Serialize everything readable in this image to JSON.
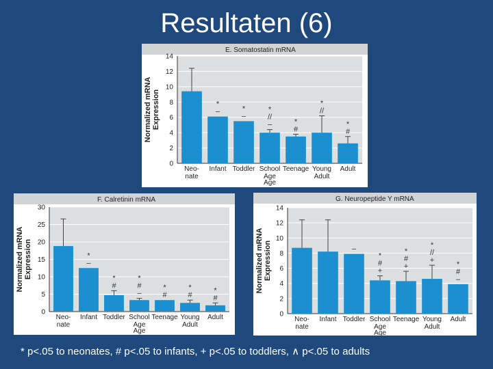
{
  "slide": {
    "title": "Resultaten (6)",
    "footnote": "* p<.05 to neonates, # p<.05 to infants, + p<.05 to toddlers, ∧ p<.05 to adults"
  },
  "colors": {
    "background": "#1f497d",
    "plot_bg": "#dcdee0",
    "bar": "#1b8fd0",
    "header_bg": "#d2d3d5",
    "text": "#222222"
  },
  "chart_data": [
    {
      "id": "e",
      "type": "bar",
      "title": "E. Somatostatin mRNA",
      "ylabel": "Normalized mRNA Expression",
      "xlabel": "Age",
      "ylim": [
        0,
        14
      ],
      "yticks": [
        0,
        2,
        4,
        6,
        8,
        10,
        12,
        14
      ],
      "categories": [
        "Neo-nate",
        "Infant",
        "Toddler",
        "School Age",
        "Teenage",
        "Young Adult",
        "Adult"
      ],
      "values": [
        9.4,
        6.1,
        5.5,
        4.0,
        3.5,
        4.0,
        2.6
      ],
      "errors": [
        3.0,
        0,
        0,
        0.4,
        0.3,
        2.2,
        0.9
      ],
      "annotations": [
        [],
        [
          "*",
          "–"
        ],
        [
          "*",
          "–"
        ],
        [
          "*",
          "//",
          "–"
        ],
        [
          "*",
          "#"
        ],
        [
          "*",
          "//"
        ],
        [
          "*",
          "#"
        ]
      ]
    },
    {
      "id": "f",
      "type": "bar",
      "title": "F. Calretinin mRNA",
      "ylabel": "Normalized mRNA Expression",
      "xlabel": "Age",
      "ylim": [
        0,
        30
      ],
      "yticks": [
        0,
        5,
        10,
        15,
        20,
        25,
        30
      ],
      "categories": [
        "Neo-nate",
        "Infant",
        "Toddler",
        "School Age",
        "Teenage",
        "Young Adult",
        "Adult"
      ],
      "values": [
        18.8,
        12.5,
        4.7,
        3.3,
        3.3,
        2.5,
        1.8
      ],
      "errors": [
        7.8,
        0,
        1.3,
        0.5,
        0,
        0.8,
        0.7
      ],
      "annotations": [
        [],
        [
          "*",
          "–"
        ],
        [
          "*",
          "#"
        ],
        [
          "*",
          "#",
          "–"
        ],
        [
          "*",
          "#"
        ],
        [
          "*",
          "#"
        ],
        [
          "*",
          "#"
        ]
      ]
    },
    {
      "id": "g",
      "type": "bar",
      "title": "G. Neuropeptide Y mRNA",
      "ylabel": "Normalized mRNA Expression",
      "xlabel": "Age",
      "ylim": [
        0,
        14
      ],
      "yticks": [
        0,
        2,
        4,
        6,
        8,
        10,
        12,
        14
      ],
      "categories": [
        "Neo-nate",
        "Infant",
        "Toddler",
        "School Age",
        "Teenage",
        "Young Adult",
        "Adult"
      ],
      "values": [
        8.7,
        8.2,
        7.9,
        4.4,
        4.3,
        4.6,
        3.9
      ],
      "errors": [
        3.7,
        4.2,
        0,
        0.6,
        1.3,
        1.8,
        0
      ],
      "annotations": [
        [],
        [],
        [
          "–"
        ],
        [
          "*",
          "#",
          "+"
        ],
        [
          "*",
          "#",
          "+"
        ],
        [
          "*",
          "//",
          "+"
        ],
        [
          "*",
          "#",
          "–"
        ]
      ]
    }
  ]
}
